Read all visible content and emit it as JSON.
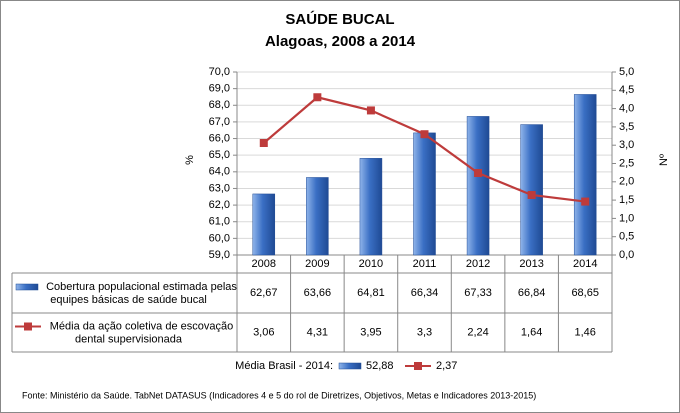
{
  "chart_data": {
    "type": "combo",
    "title": "SAÚDE BUCAL",
    "subtitle": "Alagoas, 2008 a 2014",
    "y_label": "%",
    "y2_label": "Nº",
    "categories": [
      "2008",
      "2009",
      "2010",
      "2011",
      "2012",
      "2013",
      "2014"
    ],
    "series": [
      {
        "name": "Cobertura populacional estimada pelas equipes básicas de saúde bucal",
        "type": "bar",
        "color": "#3a6fc4",
        "values": [
          62.67,
          63.66,
          64.81,
          66.34,
          67.33,
          66.84,
          68.65
        ],
        "value_labels": [
          "62,67",
          "63,66",
          "64,81",
          "66,34",
          "67,33",
          "66,84",
          "68,65"
        ]
      },
      {
        "name": "Média da ação coletiva de escovação dental supervisionada",
        "type": "line",
        "axis": "y2",
        "color": "#be3b3b",
        "values": [
          3.06,
          4.31,
          3.95,
          3.3,
          2.24,
          1.64,
          1.46
        ],
        "value_labels": [
          "3,06",
          "4,31",
          "3,95",
          "3,3",
          "2,24",
          "1,64",
          "1,46"
        ]
      }
    ],
    "ylim": [
      59.0,
      70.0
    ],
    "yticks": [
      {
        "value": 59,
        "label": "59,0"
      },
      {
        "value": 60,
        "label": "60,0"
      },
      {
        "value": 61,
        "label": "61,0"
      },
      {
        "value": 62,
        "label": "62,0"
      },
      {
        "value": 63,
        "label": "63,0"
      },
      {
        "value": 64,
        "label": "64,0"
      },
      {
        "value": 65,
        "label": "65,0"
      },
      {
        "value": 66,
        "label": "66,0"
      },
      {
        "value": 67,
        "label": "67,0"
      },
      {
        "value": 68,
        "label": "68,0"
      },
      {
        "value": 69,
        "label": "69,0"
      },
      {
        "value": 70,
        "label": "70,0"
      }
    ],
    "y2lim": [
      0,
      5
    ],
    "y2ticks": [
      {
        "value": 0,
        "label": "0,0"
      },
      {
        "value": 0.5,
        "label": "0,5"
      },
      {
        "value": 1,
        "label": "1,0"
      },
      {
        "value": 1.5,
        "label": "1,5"
      },
      {
        "value": 2,
        "label": "2,0"
      },
      {
        "value": 2.5,
        "label": "2,5"
      },
      {
        "value": 3,
        "label": "3,0"
      },
      {
        "value": 3.5,
        "label": "3,5"
      },
      {
        "value": 4,
        "label": "4,0"
      },
      {
        "value": 4.5,
        "label": "4,5"
      },
      {
        "value": 5,
        "label": "5,0"
      }
    ],
    "grid": true,
    "reference": {
      "label": "Média Brasil - 2014:",
      "values": [
        52.88,
        2.37
      ],
      "value_labels": [
        "52,88",
        "2,37"
      ]
    },
    "source": "Fonte: Ministério da Saúde. TabNet DATASUS (Indicadores 4 e 5 do rol de Diretrizes, Objetivos, Metas e Indicadores 2013-2015)"
  }
}
